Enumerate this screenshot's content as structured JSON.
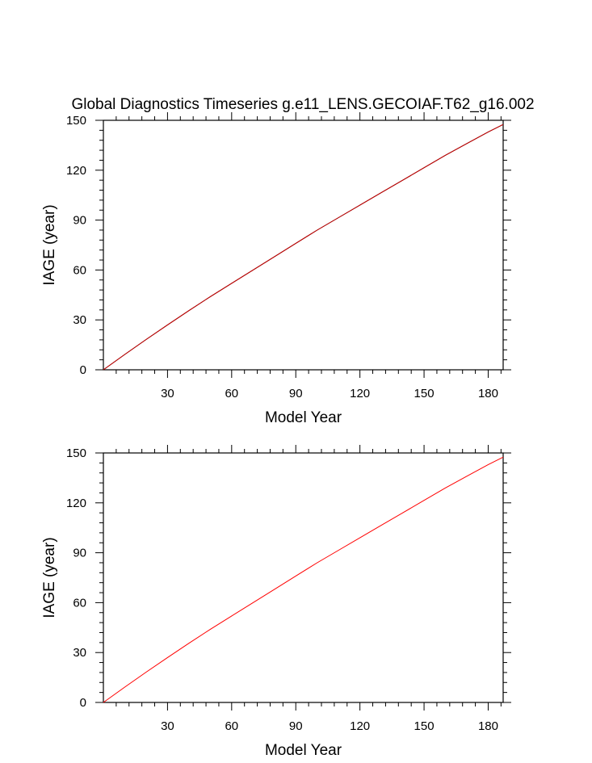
{
  "chart_data": [
    {
      "type": "line",
      "title": "Global Diagnostics Timeseries g.e11_LENS.GECOIAF.T62_g16.002",
      "xlabel": "Model Year",
      "ylabel": "IAGE (year)",
      "xlim": [
        0,
        187
      ],
      "ylim": [
        0,
        150
      ],
      "xticks": [
        30,
        60,
        90,
        120,
        150,
        180
      ],
      "yticks": [
        0,
        30,
        60,
        90,
        120,
        150
      ],
      "grid": false,
      "series": [
        {
          "color": "#000000",
          "x": [
            0,
            10,
            20,
            30,
            40,
            50,
            60,
            70,
            80,
            90,
            100,
            110,
            120,
            130,
            140,
            150,
            160,
            170,
            180,
            187
          ],
          "y": [
            0,
            9.2,
            18.2,
            27.0,
            35.6,
            44.0,
            52.0,
            60.0,
            68.0,
            76.0,
            84.0,
            91.5,
            99.0,
            106.5,
            114.0,
            121.5,
            129.0,
            136.0,
            143.0,
            147.5
          ]
        },
        {
          "color": "#cc0000",
          "x": [
            0,
            10,
            20,
            30,
            40,
            50,
            60,
            70,
            80,
            90,
            100,
            110,
            120,
            130,
            140,
            150,
            160,
            170,
            180,
            187
          ],
          "y": [
            0,
            9.2,
            18.2,
            27.0,
            35.6,
            44.0,
            52.0,
            60.0,
            68.0,
            76.0,
            84.0,
            91.5,
            99.0,
            106.5,
            114.0,
            121.5,
            129.0,
            136.0,
            143.0,
            147.5
          ]
        }
      ]
    },
    {
      "type": "line",
      "title": "",
      "xlabel": "Model Year",
      "ylabel": "IAGE (year)",
      "xlim": [
        0,
        187
      ],
      "ylim": [
        0,
        150
      ],
      "xticks": [
        30,
        60,
        90,
        120,
        150,
        180
      ],
      "yticks": [
        0,
        30,
        60,
        90,
        120,
        150
      ],
      "grid": false,
      "series": [
        {
          "color": "#ff0000",
          "x": [
            0,
            10,
            20,
            30,
            40,
            50,
            60,
            70,
            80,
            90,
            100,
            110,
            120,
            130,
            140,
            150,
            160,
            170,
            180,
            187
          ],
          "y": [
            0,
            9.2,
            18.2,
            27.0,
            35.6,
            44.0,
            52.0,
            60.0,
            68.0,
            76.0,
            84.0,
            91.5,
            99.0,
            106.5,
            114.0,
            121.5,
            129.0,
            136.0,
            143.0,
            147.5
          ]
        }
      ]
    }
  ]
}
